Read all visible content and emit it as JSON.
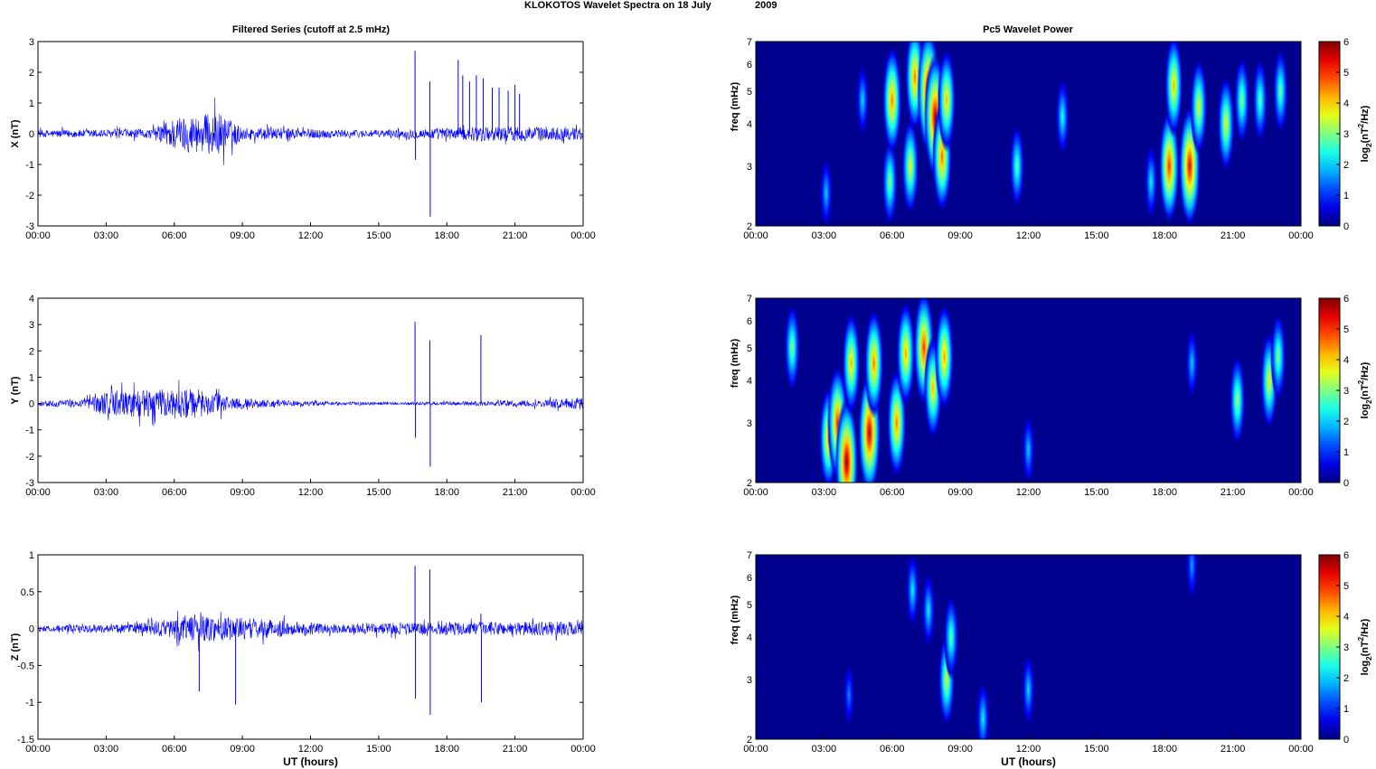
{
  "figure": {
    "suptitle_a": "KLOKOTOS Wavelet Spectra on 18 July",
    "suptitle_b": "2009",
    "left_title": "Filtered Series (cutoff at 2.5 mHz)",
    "right_title": "Pc5 Wavelet Power",
    "xlabel": "UT (hours)",
    "x_ticks": [
      "00:00",
      "03:00",
      "06:00",
      "09:00",
      "12:00",
      "15:00",
      "18:00",
      "21:00",
      "00:00"
    ],
    "freq_label": "freq (mHz)",
    "freq_ticks": [
      "2",
      "3",
      "4",
      "5",
      "6",
      "7"
    ],
    "colorbar_label": "log2(nT2/Hz)",
    "colorbar_ticks": [
      "0",
      "1",
      "2",
      "3",
      "4",
      "5",
      "6"
    ]
  },
  "colors": {
    "trace": "#0000ff",
    "spectrum_bg": "#00008f"
  },
  "chart_data": [
    {
      "type": "line",
      "component": "X",
      "ylabel": "X (nT)",
      "ylim": [
        -3,
        3
      ],
      "y_ticks": [
        "-3",
        "-2",
        "-1",
        "0",
        "1",
        "2",
        "3"
      ],
      "xlim_hours": [
        0,
        24
      ],
      "noise_envelope": [
        [
          0,
          0.12
        ],
        [
          5,
          0.15
        ],
        [
          6,
          0.55
        ],
        [
          8,
          0.7
        ],
        [
          9,
          0.2
        ],
        [
          14.5,
          0.12
        ],
        [
          16.5,
          0.15
        ],
        [
          18,
          0.2
        ],
        [
          21,
          0.25
        ],
        [
          24,
          0.2
        ]
      ],
      "spikes": [
        [
          16.6,
          2.7
        ],
        [
          16.62,
          -0.85
        ],
        [
          17.25,
          1.7
        ],
        [
          17.27,
          -2.7
        ],
        [
          18.5,
          2.4
        ],
        [
          18.7,
          1.9
        ],
        [
          19.0,
          1.7
        ],
        [
          19.3,
          1.9
        ],
        [
          19.6,
          1.8
        ],
        [
          20.0,
          1.5
        ],
        [
          20.3,
          1.5
        ],
        [
          20.7,
          1.4
        ],
        [
          21.0,
          1.6
        ],
        [
          21.2,
          1.3
        ]
      ],
      "spectrum": {
        "ylim_mhz": [
          2,
          7
        ],
        "blobs": [
          [
            3.1,
            2.5,
            1.5
          ],
          [
            4.7,
            4.7,
            1.6
          ],
          [
            5.9,
            2.7,
            2.8
          ],
          [
            6.0,
            4.7,
            4.5
          ],
          [
            6.8,
            3.0,
            3.5
          ],
          [
            7.0,
            5.5,
            4.5
          ],
          [
            7.6,
            5.0,
            5.8
          ],
          [
            7.9,
            4.2,
            5.8
          ],
          [
            8.2,
            3.2,
            4.6
          ],
          [
            8.4,
            4.7,
            4.0
          ],
          [
            11.5,
            3.0,
            2.5
          ],
          [
            13.5,
            4.2,
            2.0
          ],
          [
            17.4,
            2.7,
            1.8
          ],
          [
            18.2,
            3.0,
            5.0
          ],
          [
            18.4,
            5.2,
            4.0
          ],
          [
            19.1,
            3.0,
            5.5
          ],
          [
            19.5,
            4.5,
            3.5
          ],
          [
            20.7,
            4.0,
            3.5
          ],
          [
            21.4,
            4.7,
            2.8
          ],
          [
            22.2,
            4.7,
            2.5
          ],
          [
            23.1,
            5.0,
            2.6
          ]
        ]
      }
    },
    {
      "type": "line",
      "component": "Y",
      "ylabel": "Y (nT)",
      "ylim": [
        -3,
        4
      ],
      "y_ticks": [
        "-3",
        "-2",
        "-1",
        "0",
        "1",
        "2",
        "3",
        "4"
      ],
      "xlim_hours": [
        0,
        24
      ],
      "noise_envelope": [
        [
          0,
          0.1
        ],
        [
          2,
          0.15
        ],
        [
          3,
          0.5
        ],
        [
          7,
          0.55
        ],
        [
          9,
          0.2
        ],
        [
          12,
          0.08
        ],
        [
          16,
          0.05
        ],
        [
          22,
          0.12
        ],
        [
          24,
          0.25
        ]
      ],
      "spikes": [
        [
          16.6,
          3.1
        ],
        [
          16.62,
          -1.3
        ],
        [
          17.25,
          2.4
        ],
        [
          17.27,
          -2.4
        ],
        [
          19.5,
          2.6
        ]
      ],
      "spectrum": {
        "ylim_mhz": [
          2,
          7
        ],
        "blobs": [
          [
            1.6,
            5.0,
            2.8
          ],
          [
            3.2,
            2.7,
            4.2
          ],
          [
            3.6,
            3.0,
            5.0
          ],
          [
            4.0,
            2.3,
            6.0
          ],
          [
            4.2,
            4.5,
            4.0
          ],
          [
            5.0,
            2.8,
            5.8
          ],
          [
            5.2,
            4.5,
            4.5
          ],
          [
            6.2,
            3.0,
            4.5
          ],
          [
            6.6,
            4.8,
            4.2
          ],
          [
            7.4,
            5.0,
            5.0
          ],
          [
            7.8,
            3.8,
            4.0
          ],
          [
            8.3,
            4.7,
            4.3
          ],
          [
            12.0,
            2.5,
            1.5
          ],
          [
            19.2,
            4.5,
            1.5
          ],
          [
            21.2,
            3.5,
            3.0
          ],
          [
            22.6,
            4.0,
            3.6
          ],
          [
            23.0,
            4.7,
            2.8
          ]
        ]
      }
    },
    {
      "type": "line",
      "component": "Z",
      "ylabel": "Z (nT)",
      "ylim": [
        -1.5,
        1
      ],
      "y_ticks": [
        "-1.5",
        "-1",
        "-0.5",
        "0",
        "0.5",
        "1"
      ],
      "xlim_hours": [
        0,
        24
      ],
      "noise_envelope": [
        [
          0,
          0.04
        ],
        [
          4,
          0.06
        ],
        [
          7,
          0.18
        ],
        [
          9,
          0.15
        ],
        [
          13,
          0.06
        ],
        [
          16,
          0.08
        ],
        [
          24,
          0.1
        ]
      ],
      "spikes": [
        [
          7.1,
          -0.85
        ],
        [
          8.7,
          -1.03
        ],
        [
          16.6,
          0.85
        ],
        [
          16.62,
          -0.95
        ],
        [
          17.25,
          0.8
        ],
        [
          17.27,
          -1.17
        ],
        [
          19.5,
          0.2
        ],
        [
          19.52,
          -1.0
        ]
      ],
      "spectrum": {
        "ylim_mhz": [
          2,
          7
        ],
        "blobs": [
          [
            6.9,
            5.5,
            1.8
          ],
          [
            7.6,
            4.8,
            1.8
          ],
          [
            8.4,
            3.0,
            3.3
          ],
          [
            8.6,
            4.0,
            2.5
          ],
          [
            10.0,
            2.3,
            1.8
          ],
          [
            12.0,
            2.8,
            1.6
          ],
          [
            4.1,
            2.7,
            1.0
          ],
          [
            19.2,
            6.5,
            1.2
          ]
        ]
      }
    }
  ]
}
